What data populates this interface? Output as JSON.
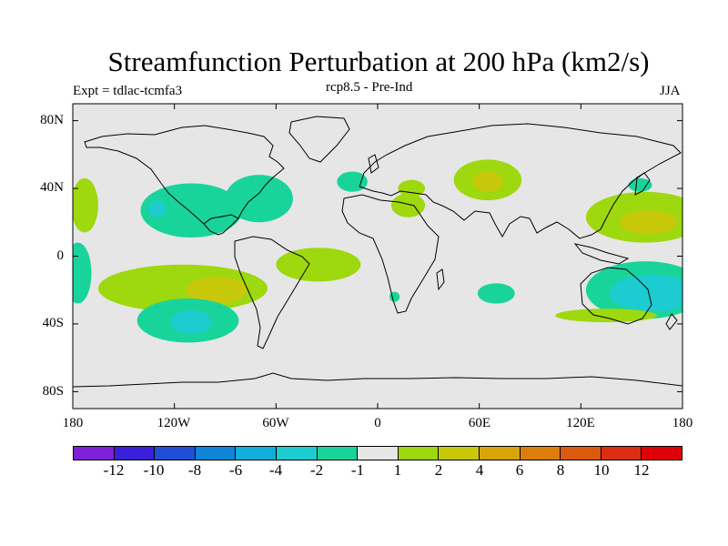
{
  "title": "Streamfunction Perturbation at 200 hPa (km2/s)",
  "subtitle_left": "Expt = tdlac-tcmfa3",
  "subtitle_center": "rcp8.5 - Pre-Ind",
  "subtitle_right": "JJA",
  "lat_ticks": [
    "80N",
    "40N",
    "0",
    "40S",
    "80S"
  ],
  "lon_ticks": [
    "180",
    "120W",
    "60W",
    "0",
    "60E",
    "120E",
    "180"
  ],
  "colorbar": {
    "colors": [
      "#7f1fd8",
      "#3a1fd8",
      "#1e4fd6",
      "#0f84d8",
      "#10aedb",
      "#1dccd0",
      "#19d49a",
      "#e6e6e6",
      "#9ed80e",
      "#c8c80a",
      "#d8a40a",
      "#dc7e0c",
      "#dc5a0e",
      "#dc2e10",
      "#e00008"
    ],
    "labels": [
      "-12",
      "-10",
      "-8",
      "-6",
      "-4",
      "-2",
      "-1",
      "1",
      "2",
      "4",
      "6",
      "8",
      "10",
      "12"
    ]
  },
  "chart_data": {
    "type": "heatmap",
    "projection": "cylindrical-equidistant",
    "lon_range": [
      -180,
      180
    ],
    "lat_range": [
      -90,
      90
    ],
    "units": "km2/s",
    "features": [
      {
        "id": "c-atl",
        "lon": -110,
        "lat": 27,
        "rx": 30,
        "ry": 16,
        "level": -1
      },
      {
        "id": "c-atl-b",
        "lon": -70,
        "lat": 34,
        "rx": 20,
        "ry": 14,
        "level": -1
      },
      {
        "id": "c-atl-core",
        "lon": -130,
        "lat": 28,
        "rx": 5,
        "ry": 5,
        "level": -2
      },
      {
        "id": "c-pacw",
        "lon": -173,
        "lat": 30,
        "rx": 8,
        "ry": 16,
        "level": 1
      },
      {
        "id": "c-pac-w2",
        "lon": -177,
        "lat": -10,
        "rx": 8,
        "ry": 18,
        "level": -1
      },
      {
        "id": "c-spac",
        "lon": -115,
        "lat": -19,
        "rx": 50,
        "ry": 14,
        "level": 1
      },
      {
        "id": "c-spac-core",
        "lon": -95,
        "lat": -20,
        "rx": 18,
        "ry": 8,
        "level": 2
      },
      {
        "id": "c-ssp",
        "lon": -112,
        "lat": -38,
        "rx": 30,
        "ry": 13,
        "level": -1
      },
      {
        "id": "c-ssp-core",
        "lon": -110,
        "lat": -39,
        "rx": 12,
        "ry": 7,
        "level": -2
      },
      {
        "id": "c-satl",
        "lon": -35,
        "lat": -5,
        "rx": 25,
        "ry": 10,
        "level": 1
      },
      {
        "id": "c-eatl",
        "lon": -15,
        "lat": 44,
        "rx": 9,
        "ry": 6,
        "level": -1
      },
      {
        "id": "c-med",
        "lon": 18,
        "lat": 30,
        "rx": 10,
        "ry": 7,
        "level": 1
      },
      {
        "id": "c-med2",
        "lon": 20,
        "lat": 40,
        "rx": 8,
        "ry": 5,
        "level": 1
      },
      {
        "id": "c-casp",
        "lon": 65,
        "lat": 45,
        "rx": 20,
        "ry": 12,
        "level": 1
      },
      {
        "id": "c-casp-core",
        "lon": 65,
        "lat": 44,
        "rx": 9,
        "ry": 6,
        "level": 2
      },
      {
        "id": "c-sio",
        "lon": 70,
        "lat": -22,
        "rx": 11,
        "ry": 6,
        "level": -1
      },
      {
        "id": "c-sio2",
        "lon": 10,
        "lat": -24,
        "rx": 3,
        "ry": 3,
        "level": -1
      },
      {
        "id": "c-npac",
        "lon": 158,
        "lat": 23,
        "rx": 35,
        "ry": 15,
        "level": 1
      },
      {
        "id": "c-npac-core",
        "lon": 160,
        "lat": 20,
        "rx": 17,
        "ry": 7,
        "level": 2
      },
      {
        "id": "c-npac-n",
        "lon": 155,
        "lat": 42,
        "rx": 7,
        "ry": 4,
        "level": -1
      },
      {
        "id": "c-aus",
        "lon": 158,
        "lat": -20,
        "rx": 35,
        "ry": 17,
        "level": -1
      },
      {
        "id": "c-aus-core",
        "lon": 162,
        "lat": -22,
        "rx": 25,
        "ry": 11,
        "level": -2
      },
      {
        "id": "c-aus-s",
        "lon": 135,
        "lat": -35,
        "rx": 30,
        "ry": 4,
        "level": 1
      }
    ]
  }
}
